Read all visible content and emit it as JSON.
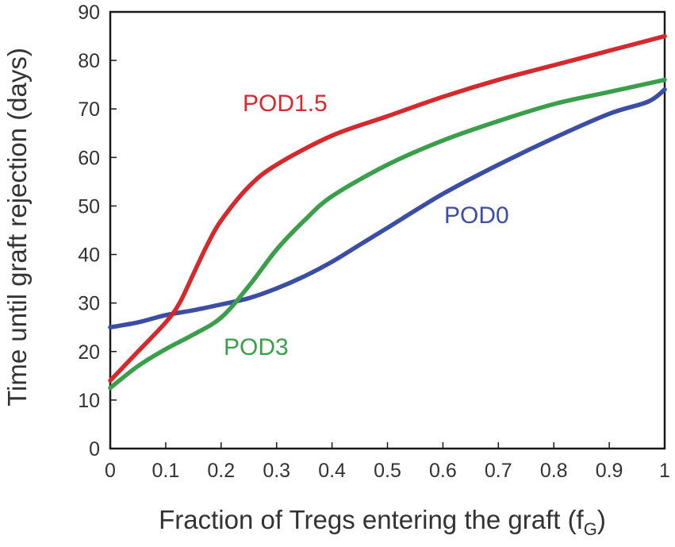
{
  "chart_data": {
    "type": "line",
    "xlabel": "Fraction of Tregs entering the graft (f",
    "xlabel_sub": "G",
    "xlabel_end": ")",
    "ylabel": "Time until graft rejection (days)",
    "xlim": [
      0,
      1
    ],
    "ylim": [
      0,
      90
    ],
    "x_ticks": [
      "0",
      "0.1",
      "0.2",
      "0.3",
      "0.4",
      "0.5",
      "0.6",
      "0.7",
      "0.8",
      "0.9",
      "1"
    ],
    "y_ticks": [
      "0",
      "10",
      "20",
      "30",
      "40",
      "50",
      "60",
      "70",
      "80",
      "90"
    ],
    "grid": false,
    "series": [
      {
        "name": "POD1.5",
        "color": "#d42a2e",
        "points": [
          [
            0,
            14
          ],
          [
            0.05,
            20
          ],
          [
            0.1,
            26
          ],
          [
            0.125,
            30
          ],
          [
            0.15,
            36
          ],
          [
            0.175,
            42
          ],
          [
            0.2,
            47
          ],
          [
            0.25,
            54
          ],
          [
            0.3,
            58.5
          ],
          [
            0.4,
            64.5
          ],
          [
            0.5,
            68.5
          ],
          [
            0.6,
            72.5
          ],
          [
            0.7,
            76
          ],
          [
            0.8,
            79
          ],
          [
            0.9,
            82
          ],
          [
            1,
            85
          ]
        ]
      },
      {
        "name": "POD3",
        "color": "#3a9e4a",
        "points": [
          [
            0,
            12.5
          ],
          [
            0.05,
            17
          ],
          [
            0.1,
            20.5
          ],
          [
            0.15,
            23.5
          ],
          [
            0.2,
            27
          ],
          [
            0.25,
            33.5
          ],
          [
            0.3,
            41
          ],
          [
            0.35,
            47
          ],
          [
            0.4,
            52
          ],
          [
            0.5,
            58.5
          ],
          [
            0.6,
            63.5
          ],
          [
            0.7,
            67.5
          ],
          [
            0.8,
            71
          ],
          [
            0.9,
            73.5
          ],
          [
            1,
            76
          ]
        ]
      },
      {
        "name": "POD0",
        "color": "#3b4ea3",
        "points": [
          [
            0,
            25
          ],
          [
            0.05,
            26
          ],
          [
            0.1,
            27.5
          ],
          [
            0.15,
            28.5
          ],
          [
            0.2,
            29.7
          ],
          [
            0.25,
            31
          ],
          [
            0.3,
            33
          ],
          [
            0.35,
            35.5
          ],
          [
            0.4,
            38.5
          ],
          [
            0.45,
            42
          ],
          [
            0.5,
            45.5
          ],
          [
            0.6,
            52.5
          ],
          [
            0.7,
            58.5
          ],
          [
            0.8,
            64
          ],
          [
            0.9,
            69
          ],
          [
            0.97,
            71.5
          ],
          [
            1,
            74
          ]
        ]
      }
    ]
  }
}
